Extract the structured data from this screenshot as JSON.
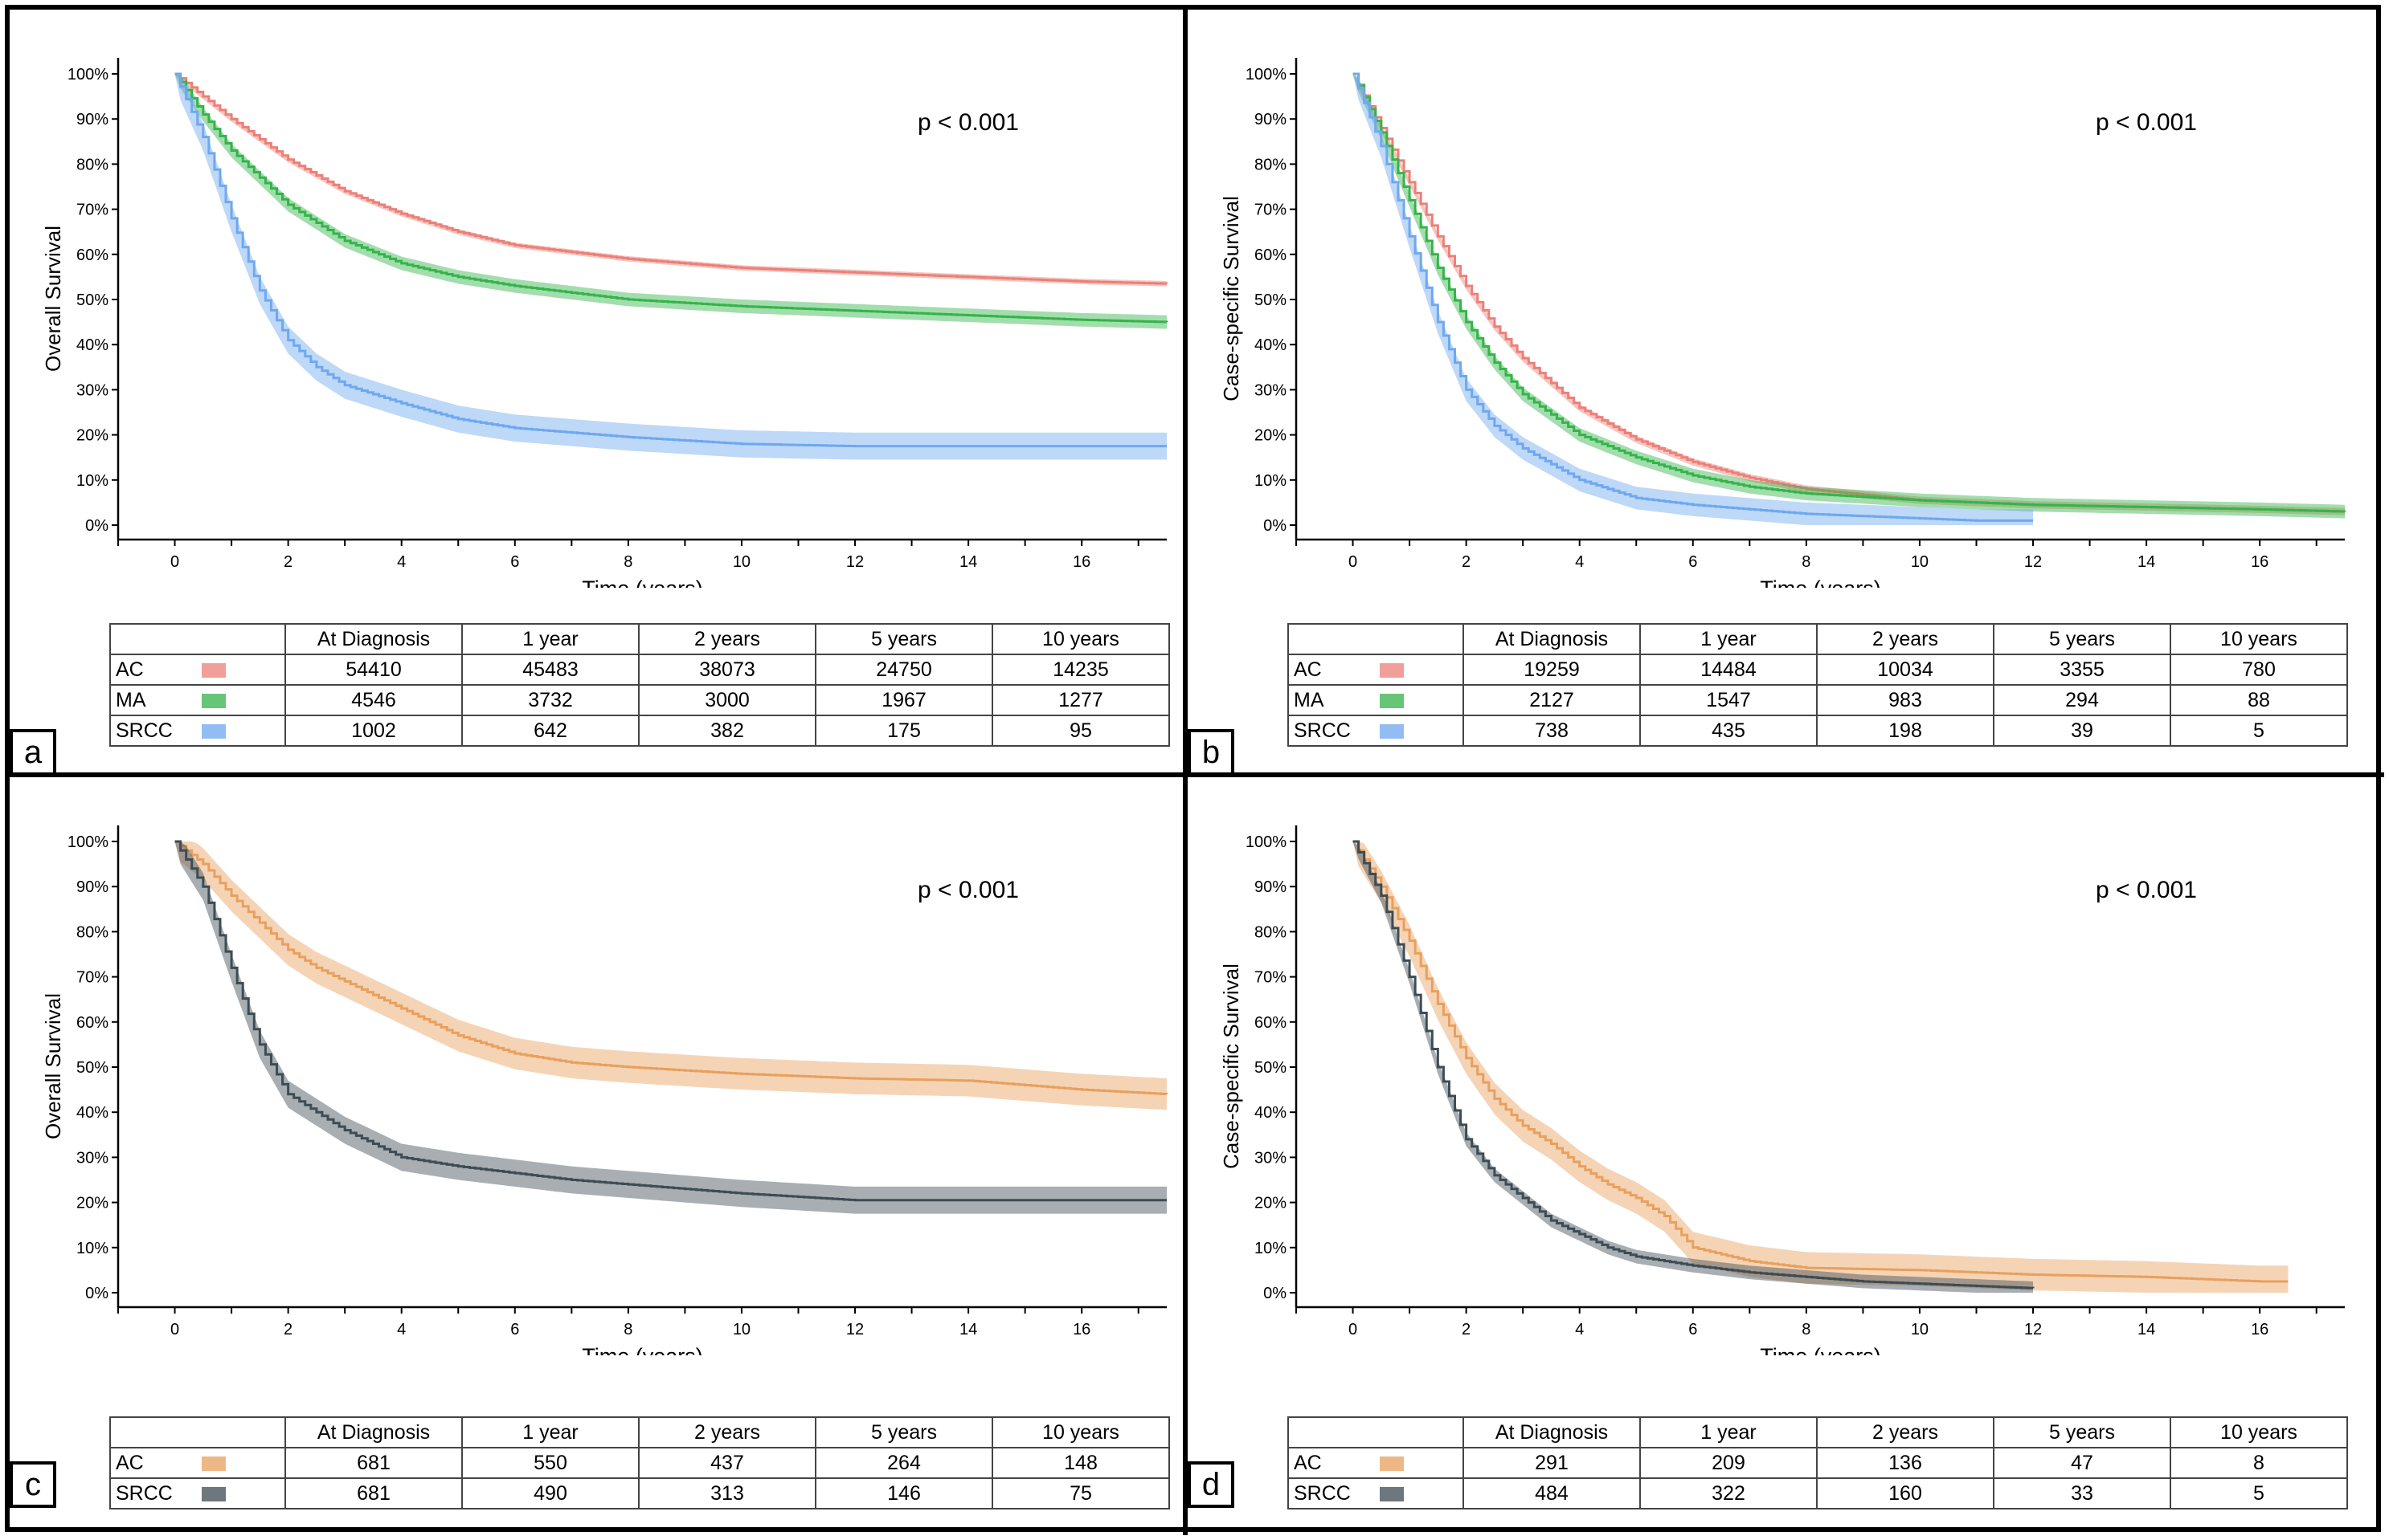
{
  "panels": [
    {
      "id": "a",
      "label": "a",
      "ptext": "p < 0.001",
      "table": {
        "headers": [
          "At Diagnosis",
          "1 year",
          "2 years",
          "5 years",
          "10 years"
        ],
        "rows": [
          {
            "name": "AC",
            "color": "#ec8078",
            "values": [
              "54410",
              "45483",
              "38073",
              "24750",
              "14235"
            ]
          },
          {
            "name": "MA",
            "color": "#34b44a",
            "values": [
              "4546",
              "3732",
              "3000",
              "1967",
              "1277"
            ]
          },
          {
            "name": "SRCC",
            "color": "#6ea8ef",
            "values": [
              "1002",
              "642",
              "382",
              "175",
              "95"
            ]
          }
        ]
      },
      "chart_data": {
        "type": "line",
        "xlabel": "Time (years)",
        "ylabel": "Overall Survival",
        "xlim": [
          -1,
          17.5
        ],
        "ylim": [
          0,
          100
        ],
        "xticks": [
          "0",
          "2",
          "4",
          "6",
          "8",
          "10",
          "12",
          "14",
          "16"
        ],
        "yticks": [
          "0%",
          "10%",
          "20%",
          "30%",
          "40%",
          "50%",
          "60%",
          "70%",
          "80%",
          "90%",
          "100%"
        ],
        "series": [
          {
            "name": "AC",
            "color": "#ec8078",
            "band": 0.6,
            "x": [
              0,
              1,
              2,
              3,
              4,
              5,
              6,
              8,
              10,
              12,
              14,
              16,
              17.5
            ],
            "y": [
              100,
              90,
              81,
              74,
              69,
              65,
              62,
              59,
              57,
              56,
              55,
              54,
              53.5
            ]
          },
          {
            "name": "MA",
            "color": "#34b44a",
            "band": 1.5,
            "x": [
              0,
              0.5,
              1,
              2,
              3,
              4,
              5,
              6,
              8,
              10,
              12,
              14,
              16,
              17.5
            ],
            "y": [
              100,
              91,
              83,
              71,
              63,
              58,
              55,
              53,
              50,
              48.5,
              47.5,
              46.5,
              45.5,
              45
            ]
          },
          {
            "name": "SRCC",
            "color": "#6ea8ef",
            "band": 3,
            "x": [
              0,
              0.5,
              1,
              1.5,
              2,
              2.5,
              3,
              4,
              5,
              6,
              8,
              10,
              12,
              14,
              16,
              17.5
            ],
            "y": [
              100,
              86,
              68,
              52,
              41,
              35,
              31,
              27,
              23.5,
              21.5,
              19.5,
              18,
              17.5,
              17.5,
              17.5,
              17.5
            ]
          }
        ]
      }
    },
    {
      "id": "b",
      "label": "b",
      "ptext": "p < 0.001",
      "table": {
        "headers": [
          "At Diagnosis",
          "1 year",
          "2 years",
          "5 years",
          "10 years"
        ],
        "rows": [
          {
            "name": "AC",
            "color": "#ec8078",
            "values": [
              "19259",
              "14484",
              "10034",
              "3355",
              "780"
            ]
          },
          {
            "name": "MA",
            "color": "#34b44a",
            "values": [
              "2127",
              "1547",
              "983",
              "294",
              "88"
            ]
          },
          {
            "name": "SRCC",
            "color": "#6ea8ef",
            "values": [
              "738",
              "435",
              "198",
              "39",
              "5"
            ]
          }
        ]
      },
      "chart_data": {
        "type": "line",
        "xlabel": "Time (years)",
        "ylabel": "Case-specific Survival",
        "xlim": [
          -1,
          17.5
        ],
        "ylim": [
          0,
          100
        ],
        "xticks": [
          "0",
          "2",
          "4",
          "6",
          "8",
          "10",
          "12",
          "14",
          "16"
        ],
        "yticks": [
          "0%",
          "10%",
          "20%",
          "30%",
          "40%",
          "50%",
          "60%",
          "70%",
          "80%",
          "90%",
          "100%"
        ],
        "series": [
          {
            "name": "AC",
            "color": "#ec8078",
            "band": 0.8,
            "x": [
              0,
              0.5,
              1,
              1.5,
              2,
              2.5,
              3,
              4,
              5,
              6,
              7,
              8,
              10,
              12,
              14,
              16,
              17.5
            ],
            "y": [
              100,
              88,
              76,
              64,
              53,
              44,
              37,
              26,
              19,
              14,
              10.5,
              8,
              5.5,
              4.5,
              4,
              3.5,
              3
            ]
          },
          {
            "name": "MA",
            "color": "#34b44a",
            "band": 1.5,
            "x": [
              0,
              0.5,
              1,
              1.5,
              2,
              2.5,
              3,
              4,
              5,
              6,
              7,
              8,
              10,
              12,
              14,
              16,
              17.5
            ],
            "y": [
              100,
              87,
              72,
              57,
              45,
              36,
              29,
              20,
              15,
              11,
              8.5,
              7,
              5.5,
              4.5,
              4,
              3.5,
              3
            ]
          },
          {
            "name": "SRCC",
            "color": "#6ea8ef",
            "band": 2.5,
            "x": [
              0,
              0.5,
              1,
              1.5,
              2,
              2.5,
              3,
              4,
              5,
              6,
              7,
              8,
              9,
              10,
              11,
              12
            ],
            "y": [
              100,
              84,
              64,
              45,
              30,
              22,
              17,
              10,
              6,
              4.5,
              3.5,
              2.5,
              2,
              1.5,
              1,
              1
            ]
          }
        ]
      }
    },
    {
      "id": "c",
      "label": "c",
      "ptext": "p < 0.001",
      "table": {
        "headers": [
          "At Diagnosis",
          "1 year",
          "2 years",
          "5 years",
          "10 years"
        ],
        "rows": [
          {
            "name": "AC",
            "color": "#e8a05e",
            "values": [
              "681",
              "550",
              "437",
              "264",
              "148"
            ]
          },
          {
            "name": "SRCC",
            "color": "#3d4c54",
            "values": [
              "681",
              "490",
              "313",
              "146",
              "75"
            ]
          }
        ]
      },
      "chart_data": {
        "type": "line",
        "xlabel": "Time (years)",
        "ylabel": "Overall Survival",
        "xlim": [
          -1,
          17.5
        ],
        "ylim": [
          0,
          100
        ],
        "xticks": [
          "0",
          "2",
          "4",
          "6",
          "8",
          "10",
          "12",
          "14",
          "16"
        ],
        "yticks": [
          "0%",
          "10%",
          "20%",
          "30%",
          "40%",
          "50%",
          "60%",
          "70%",
          "80%",
          "90%",
          "100%"
        ],
        "series": [
          {
            "name": "AC",
            "color": "#e8a05e",
            "band": 3.5,
            "x": [
              0,
              0.5,
              1,
              1.5,
              2,
              2.5,
              3,
              4,
              5,
              6,
              7,
              8,
              10,
              12,
              14,
              16,
              17.5
            ],
            "y": [
              100,
              95,
              88,
              82,
              76,
              72,
              69,
              63,
              57,
              53,
              51,
              50,
              48.5,
              47.5,
              47,
              45,
              44
            ]
          },
          {
            "name": "SRCC",
            "color": "#3d4c54",
            "band": 3,
            "x": [
              0,
              0.5,
              1,
              1.5,
              2,
              2.5,
              3,
              4,
              5,
              6,
              7,
              8,
              10,
              12,
              14,
              16,
              17.5
            ],
            "y": [
              100,
              90,
              72,
              55,
              44,
              40,
              36,
              30,
              28,
              26.5,
              25,
              24,
              22,
              20.5,
              20.5,
              20.5,
              20.5
            ]
          }
        ]
      }
    },
    {
      "id": "d",
      "label": "d",
      "ptext": "p < 0.001",
      "table": {
        "headers": [
          "At Diagnosis",
          "1 year",
          "2 years",
          "5 years",
          "10 years"
        ],
        "rows": [
          {
            "name": "AC",
            "color": "#e8a05e",
            "values": [
              "291",
              "209",
              "136",
              "47",
              "8"
            ]
          },
          {
            "name": "SRCC",
            "color": "#3d4c54",
            "values": [
              "484",
              "322",
              "160",
              "33",
              "5"
            ]
          }
        ]
      },
      "chart_data": {
        "type": "line",
        "xlabel": "Time (years)",
        "ylabel": "Case-specific Survival",
        "xlim": [
          -1,
          17.5
        ],
        "ylim": [
          0,
          100
        ],
        "xticks": [
          "0",
          "2",
          "4",
          "6",
          "8",
          "10",
          "12",
          "14",
          "16"
        ],
        "yticks": [
          "0%",
          "10%",
          "20%",
          "30%",
          "40%",
          "50%",
          "60%",
          "70%",
          "80%",
          "90%",
          "100%"
        ],
        "series": [
          {
            "name": "AC",
            "color": "#e8a05e",
            "band": 3.5,
            "x": [
              0,
              0.5,
              1,
              1.5,
              2,
              2.5,
              3,
              3.5,
              4,
              4.5,
              5,
              5.5,
              6,
              7,
              8,
              10,
              12,
              14,
              16,
              16.5
            ],
            "y": [
              100,
              90,
              78,
              64,
              52,
              43,
              37,
              33,
              28,
              24,
              21,
              17,
              10,
              7,
              5.5,
              5,
              4,
              3.5,
              2.5,
              2.5
            ]
          },
          {
            "name": "SRCC",
            "color": "#3d4c54",
            "band": 1.5,
            "x": [
              0,
              0.5,
              1,
              1.5,
              2,
              2.5,
              3,
              3.5,
              4,
              4.5,
              5,
              6,
              7,
              8,
              9,
              10,
              11,
              12
            ],
            "y": [
              100,
              88,
              70,
              50,
              34,
              26,
              21,
              16,
              13,
              10,
              8,
              6,
              4.5,
              3.5,
              2.5,
              2,
              1.5,
              1
            ]
          }
        ]
      }
    }
  ]
}
